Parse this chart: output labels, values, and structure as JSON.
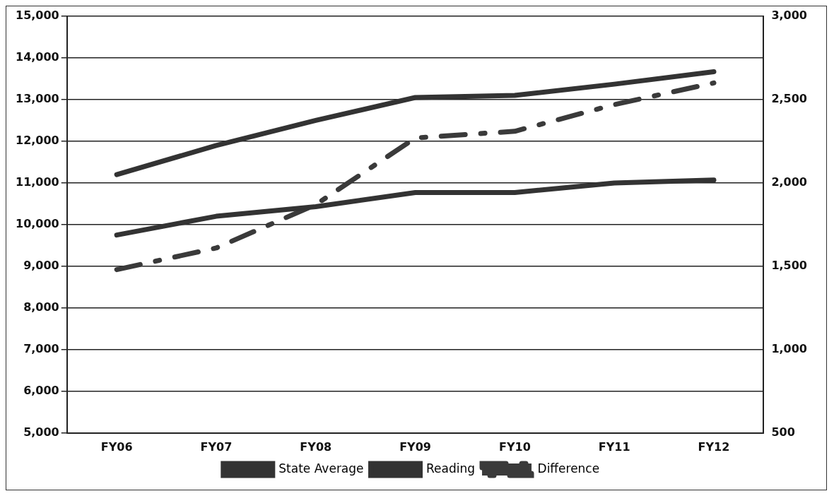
{
  "chart_data": {
    "type": "line",
    "categories": [
      "FY06",
      "FY07",
      "FY08",
      "FY09",
      "FY10",
      "FY11",
      "FY12"
    ],
    "series": [
      {
        "name": "State Average",
        "color": "#333333",
        "values": [
          11200,
          11900,
          12500,
          13050,
          13100,
          13370,
          13670
        ]
      },
      {
        "name": "Reading",
        "color": "#333333",
        "values": [
          9750,
          10200,
          10430,
          10770,
          10770,
          11000,
          11070
        ]
      },
      {
        "name": "Difference",
        "color": "#3a3a3a",
        "axis": "y2",
        "line_style": "dashed",
        "values": [
          1480,
          1610,
          1870,
          2270,
          2310,
          2470,
          2600
        ]
      }
    ],
    "ylim": [
      5000,
      15000
    ],
    "yticks": [
      {
        "value": 5000,
        "label": "5,000"
      },
      {
        "value": 6000,
        "label": "6,000"
      },
      {
        "value": 7000,
        "label": "7,000"
      },
      {
        "value": 8000,
        "label": "8,000"
      },
      {
        "value": 9000,
        "label": "9,000"
      },
      {
        "value": 10000,
        "label": "10,000"
      },
      {
        "value": 11000,
        "label": "11,000"
      },
      {
        "value": 12000,
        "label": "12,000"
      },
      {
        "value": 13000,
        "label": "13,000"
      },
      {
        "value": 14000,
        "label": "14,000"
      },
      {
        "value": 15000,
        "label": "15,000"
      }
    ],
    "y2lim": [
      500,
      3000
    ],
    "y2ticks": [
      500,
      {
        "value": 1000,
        "label": "1,000"
      },
      {
        "value": 1500,
        "label": "1,500"
      },
      {
        "value": 2000,
        "label": "2,000"
      },
      {
        "value": 2500,
        "label": "2,500"
      },
      {
        "value": 3000,
        "label": "3,000"
      }
    ],
    "grid": "y",
    "legend": "bottom",
    "marker": "none",
    "line_style": "solid"
  }
}
